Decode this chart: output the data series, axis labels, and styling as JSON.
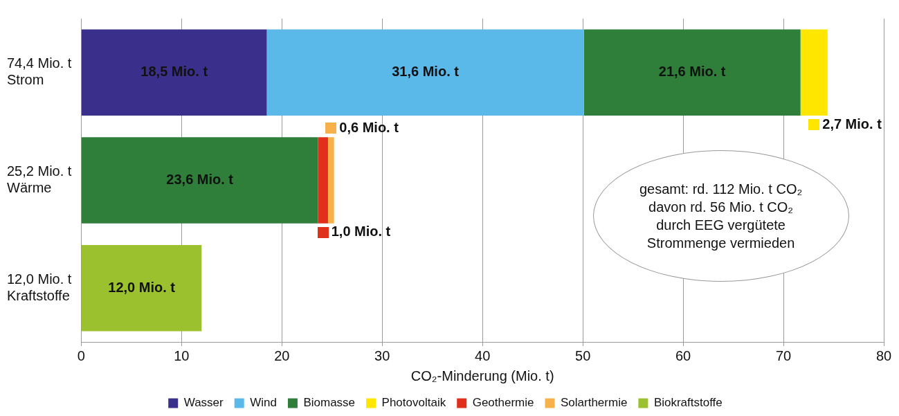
{
  "chart_data": {
    "type": "bar",
    "orientation": "horizontal",
    "stacked": true,
    "categories": [
      "74,4 Mio. t\nStrom",
      "25,2 Mio. t\nWärme",
      "12,0 Mio. t\nKraftstoffe"
    ],
    "series": [
      {
        "name": "Wasser",
        "color": "#3b2f8c",
        "values": [
          18.5,
          null,
          null
        ],
        "value_labels": [
          "18,5 Mio. t",
          null,
          null
        ]
      },
      {
        "name": "Wind",
        "color": "#5bb9ea",
        "values": [
          31.6,
          null,
          null
        ],
        "value_labels": [
          "31,6 Mio. t",
          null,
          null
        ]
      },
      {
        "name": "Biomasse",
        "color": "#2f7f3a",
        "values": [
          21.6,
          23.6,
          null
        ],
        "value_labels": [
          "21,6 Mio. t",
          "23,6 Mio. t",
          null
        ]
      },
      {
        "name": "Photovoltaik",
        "color": "#ffe600",
        "values": [
          2.7,
          null,
          null
        ],
        "value_labels": [
          "2,7 Mio. t",
          null,
          null
        ]
      },
      {
        "name": "Geothermie",
        "color": "#e0301c",
        "values": [
          null,
          1.0,
          null
        ],
        "value_labels": [
          null,
          "1,0 Mio. t",
          null
        ]
      },
      {
        "name": "Solarthermie",
        "color": "#f7b14a",
        "values": [
          null,
          0.6,
          null
        ],
        "value_labels": [
          null,
          "0,6 Mio. t",
          null
        ]
      },
      {
        "name": "Biokraftstoffe",
        "color": "#9cc12e",
        "values": [
          null,
          null,
          12.0
        ],
        "value_labels": [
          null,
          null,
          "12,0 Mio. t"
        ]
      }
    ],
    "xlabel": "CO₂-Minderung (Mio. t)",
    "xlim": [
      0,
      80
    ],
    "xticks": [
      0,
      10,
      20,
      30,
      40,
      50,
      60,
      70,
      80
    ],
    "grid": "x",
    "legend": "bottom",
    "annotations": [
      "gesamt: rd. 112 Mio. t CO₂\ndavon rd. 56 Mio. t CO₂\ndurch EEG vergütete\nStrommenge vermieden"
    ]
  }
}
